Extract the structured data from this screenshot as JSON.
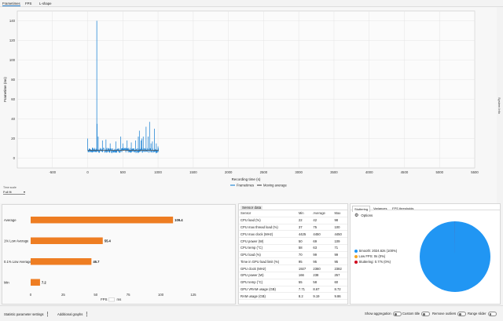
{
  "tabs": [
    {
      "label": "Frametimes",
      "active": true
    },
    {
      "label": "FPS",
      "active": false
    },
    {
      "label": "L-shape",
      "active": false
    }
  ],
  "side_label": "System Info",
  "time_scale": {
    "label": "Time scale",
    "value": "Full fit"
  },
  "chart_data": [
    {
      "type": "line",
      "xlabel": "Recording time (s)",
      "ylabel": "Frametime (ms)",
      "xlim": [
        -1000,
        5500
      ],
      "ylim": [
        -10,
        150
      ],
      "x_ticks": [
        -500,
        0,
        500,
        1000,
        1500,
        2000,
        2500,
        3000,
        3500,
        4000,
        4500,
        5000,
        5500
      ],
      "y_ticks": [
        0,
        20,
        40,
        60,
        80,
        100,
        120,
        140
      ],
      "x_range": [
        0,
        1010
      ],
      "legend": "bottom-center",
      "series": [
        {
          "name": "Frametimes",
          "color": "#2b8ad6",
          "baseline": 8,
          "spikes": [
            {
              "x": 0,
              "y": 20
            },
            {
              "x": 130,
              "y": 140
            },
            {
              "x": 135,
              "y": 35
            },
            {
              "x": 150,
              "y": 22
            },
            {
              "x": 210,
              "y": 18
            },
            {
              "x": 260,
              "y": 19
            },
            {
              "x": 320,
              "y": 15
            },
            {
              "x": 400,
              "y": 17
            },
            {
              "x": 470,
              "y": 22
            },
            {
              "x": 500,
              "y": 15
            },
            {
              "x": 560,
              "y": 18
            },
            {
              "x": 620,
              "y": 16
            },
            {
              "x": 680,
              "y": 18
            },
            {
              "x": 720,
              "y": 22
            },
            {
              "x": 735,
              "y": 28
            },
            {
              "x": 760,
              "y": 18
            },
            {
              "x": 770,
              "y": 20
            },
            {
              "x": 790,
              "y": 22
            },
            {
              "x": 830,
              "y": 32
            },
            {
              "x": 860,
              "y": 22
            },
            {
              "x": 880,
              "y": 37
            },
            {
              "x": 900,
              "y": 15
            },
            {
              "x": 920,
              "y": 17
            },
            {
              "x": 950,
              "y": 30
            },
            {
              "x": 975,
              "y": 15
            },
            {
              "x": 1000,
              "y": 12
            }
          ]
        },
        {
          "name": "Moving average",
          "color": "#555555",
          "value": 8
        }
      ]
    },
    {
      "type": "bar",
      "orientation": "horizontal",
      "categories": [
        "Average",
        "1% Low Average",
        "0.1% Low Average",
        "Min"
      ],
      "values": [
        109.4,
        55.4,
        46.7,
        7.2
      ],
      "xlim": [
        0,
        125
      ],
      "x_ticks": [
        0,
        25,
        50,
        75,
        100,
        125
      ],
      "xlabel": "FPS",
      "xlabel_extra": "ms",
      "color": "#ee7d22"
    },
    {
      "type": "pie",
      "slices": [
        {
          "label": "Smooth: 2024.62s (100%)",
          "value": 100,
          "color": "#2196f3"
        },
        {
          "label": "Low FPS: 0s (0%)",
          "value": 0,
          "color": "#f5a623"
        },
        {
          "label": "Stuttering: 0.77s (0%)",
          "value": 0.04,
          "color": "#d0021b"
        }
      ]
    }
  ],
  "sensor_panel": {
    "title": "Sensor data",
    "columns": [
      "Sensor",
      "Min",
      "Average",
      "Max"
    ],
    "rows": [
      [
        "CPU load (%)",
        "22",
        "42",
        "98"
      ],
      [
        "CPU max thread load (%)",
        "37",
        "75",
        "100"
      ],
      [
        "CPU max clock (MHz)",
        "4425",
        "4450",
        "4450"
      ],
      [
        "CPU power (W)",
        "50",
        "69",
        "109"
      ],
      [
        "CPU temp (°C)",
        "58",
        "63",
        "71"
      ],
      [
        "GPU load (%)",
        "70",
        "99",
        "99"
      ],
      [
        "Time in GPU load limit (%)",
        "95",
        "95",
        "95"
      ],
      [
        "GPU clock (MHz)",
        "1927",
        "2360",
        "2382"
      ],
      [
        "GPU power (W)",
        "166",
        "238",
        "257"
      ],
      [
        "GPU temp (°C)",
        "55",
        "58",
        "60"
      ],
      [
        "GPU VRAM usage (GB)",
        "7.71",
        "8.67",
        "8.72"
      ],
      [
        "RAM usage (GB)",
        "8.2",
        "9.19",
        "9.86"
      ]
    ]
  },
  "right_panel": {
    "tabs": [
      {
        "label": "Stuttering",
        "active": true
      },
      {
        "label": "Variances",
        "active": false
      },
      {
        "label": "FPS thresholds",
        "active": false
      }
    ],
    "options_label": "Options"
  },
  "bottom_bar": {
    "statistic_settings": "Statistic parameter settings",
    "additional_graphs": "Additional graphs",
    "show_aggregation": "Show aggregation",
    "custom_title": "Custom title",
    "remove_outliers": "Remove outliers",
    "range_slider": "Range slider"
  }
}
